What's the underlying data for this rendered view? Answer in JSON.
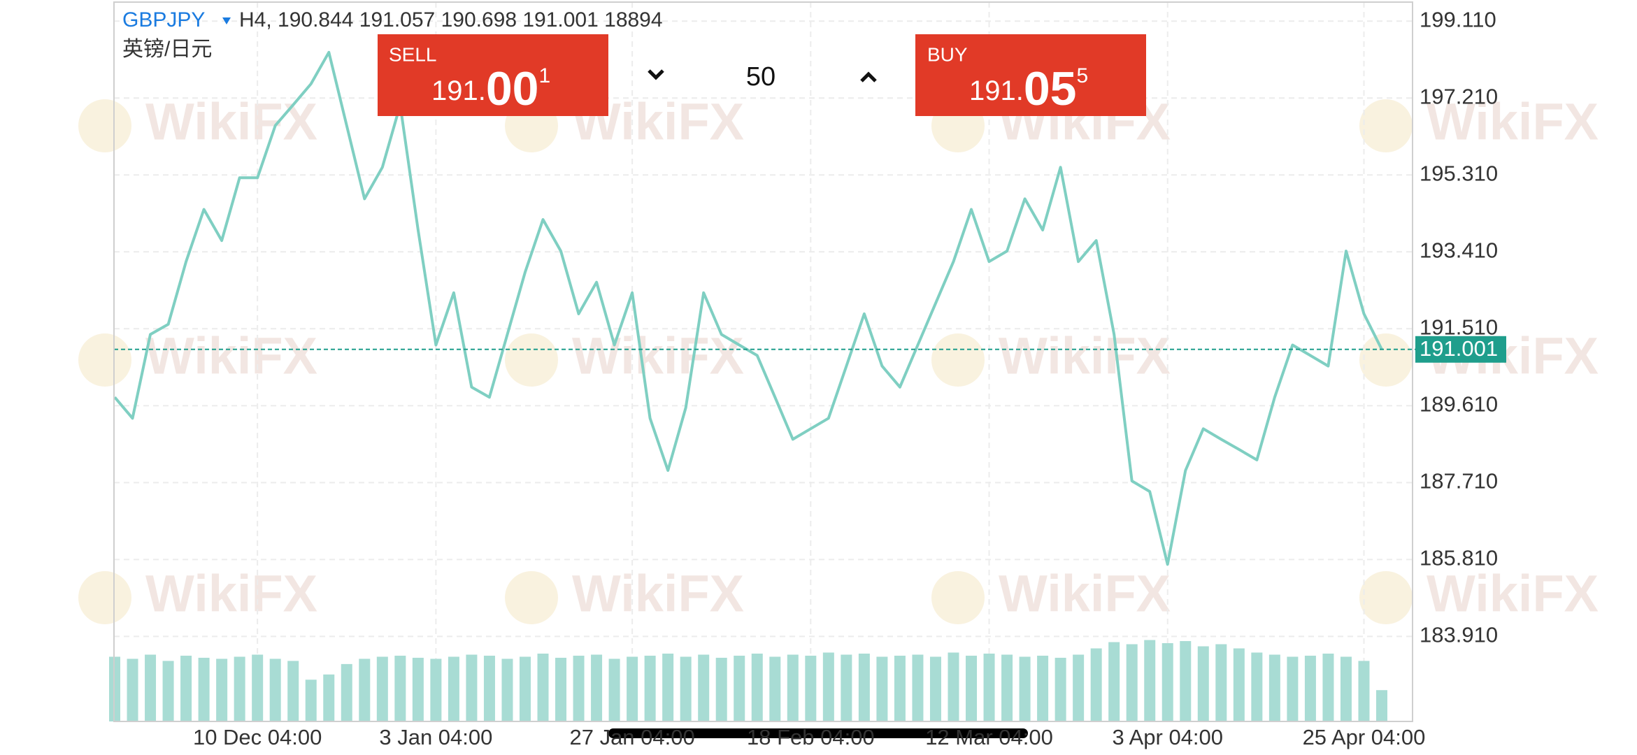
{
  "header": {
    "symbol": "GBPJPY",
    "ohlc": "H4, 190.844 191.057 190.698 191.001 18894",
    "name": "英镑/日元"
  },
  "trade": {
    "sell": {
      "label": "SELL",
      "price_head": "191.",
      "price_big": "00",
      "price_pip": "1"
    },
    "quantity": "50",
    "buy": {
      "label": "BUY",
      "price_head": "191.",
      "price_big": "05",
      "price_pip": "5"
    }
  },
  "watermark": "WikiFX",
  "chart_data": {
    "type": "line",
    "categories": [
      null,
      null,
      null,
      null,
      null,
      null,
      null,
      null,
      "10 Dec 04:00",
      null,
      null,
      null,
      null,
      null,
      null,
      null,
      null,
      null,
      "3 Jan 04:00",
      null,
      null,
      null,
      null,
      null,
      null,
      null,
      null,
      null,
      null,
      "27 Jan 04:00",
      null,
      null,
      null,
      null,
      null,
      null,
      null,
      null,
      null,
      "18 Feb 04:00",
      null,
      null,
      null,
      null,
      null,
      null,
      null,
      null,
      null,
      "12 Mar 04:00",
      null,
      null,
      null,
      null,
      null,
      null,
      null,
      null,
      null,
      "3 Apr 04:00",
      null,
      null,
      null,
      null,
      null,
      null,
      null,
      null,
      null,
      null,
      "25 Apr 04:00",
      null
    ],
    "values": [
      189.82,
      189.3,
      191.37,
      191.62,
      193.17,
      194.46,
      193.69,
      195.24,
      195.24,
      196.53,
      197.04,
      197.56,
      198.34,
      196.53,
      194.72,
      195.5,
      197.04,
      193.95,
      191.11,
      192.4,
      190.07,
      189.82,
      191.37,
      192.91,
      194.21,
      193.43,
      191.88,
      192.66,
      191.11,
      192.4,
      189.3,
      188.01,
      189.56,
      192.4,
      191.37,
      191.11,
      190.85,
      189.82,
      188.78,
      189.04,
      189.3,
      190.59,
      191.88,
      190.59,
      190.07,
      191.11,
      192.14,
      193.17,
      194.46,
      193.17,
      193.43,
      194.72,
      193.95,
      195.5,
      193.17,
      193.69,
      191.37,
      187.75,
      187.49,
      185.69,
      188.01,
      189.04,
      188.78,
      188.53,
      188.27,
      189.82,
      191.11,
      190.85,
      190.59,
      193.43,
      191.88,
      191.0
    ],
    "color": "#7fcfc2",
    "volume": [
      62,
      60,
      64,
      58,
      63,
      61,
      60,
      62,
      64,
      60,
      58,
      40,
      45,
      55,
      60,
      62,
      63,
      61,
      60,
      62,
      64,
      63,
      60,
      62,
      65,
      61,
      63,
      64,
      60,
      62,
      63,
      65,
      62,
      64,
      61,
      63,
      65,
      62,
      64,
      63,
      66,
      64,
      65,
      62,
      63,
      64,
      62,
      66,
      63,
      65,
      64,
      62,
      63,
      61,
      64,
      70,
      76,
      74,
      78,
      75,
      77,
      72,
      74,
      70,
      66,
      64,
      62,
      63,
      65,
      62,
      58,
      30
    ],
    "volume_color": "#a8dcd4",
    "ylim": [
      181.81,
      199.58
    ],
    "yticks": [
      {
        "value": 199.11,
        "label": "199.110"
      },
      {
        "value": 197.21,
        "label": "197.210"
      },
      {
        "value": 195.31,
        "label": "195.310"
      },
      {
        "value": 193.41,
        "label": "193.410"
      },
      {
        "value": 191.51,
        "label": "191.510"
      },
      {
        "value": 189.61,
        "label": "189.610"
      },
      {
        "value": 187.71,
        "label": "187.710"
      },
      {
        "value": 185.81,
        "label": "185.810"
      },
      {
        "value": 183.91,
        "label": "183.910"
      }
    ],
    "grid": true,
    "current_price": 191.001,
    "current_price_color": "#1f9e8c"
  }
}
